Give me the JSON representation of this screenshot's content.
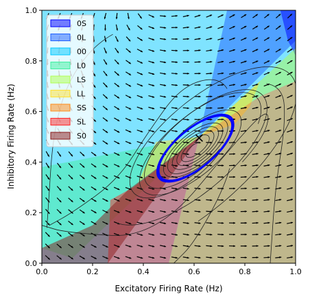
{
  "chart_data": {
    "type": "phase-plane",
    "xlabel": "Excitatory Firing Rate (Hz)",
    "ylabel": "Inhibitory Firing Rate (Hz)",
    "xlim": [
      0,
      1
    ],
    "ylim": [
      0,
      1
    ],
    "x_ticks": [
      "0.0",
      "0.2",
      "0.4",
      "0.6",
      "0.8",
      "1.0"
    ],
    "y_ticks": [
      "0.0",
      "0.2",
      "0.4",
      "0.6",
      "0.8",
      "1.0"
    ],
    "legend_position": "top-left",
    "fixed_point": {
      "x": 0.62,
      "y": 0.495,
      "marker": "x"
    },
    "limit_cycle_color": "#0000ff",
    "legend": [
      {
        "label": "0S",
        "color": "#0000ff"
      },
      {
        "label": "0L",
        "color": "#1f5fff"
      },
      {
        "label": "00",
        "color": "#00c8ff"
      },
      {
        "label": "L0",
        "color": "#40f0a0"
      },
      {
        "label": "LS",
        "color": "#b0ff50"
      },
      {
        "label": "LL",
        "color": "#ffe030"
      },
      {
        "label": "SS",
        "color": "#ff8c1a"
      },
      {
        "label": "SL",
        "color": "#ff2a2a"
      },
      {
        "label": "S0",
        "color": "#8b1a1a"
      }
    ],
    "regions": [
      {
        "label": "00",
        "points": [
          [
            0,
            0
          ],
          [
            0,
            1
          ],
          [
            1,
            1
          ],
          [
            1,
            0
          ]
        ]
      },
      {
        "label": "0L",
        "points": [
          [
            0.73,
            1
          ],
          [
            1,
            1
          ],
          [
            1,
            0.88
          ],
          [
            0.72,
            0.6
          ],
          [
            0.62,
            0.5
          ]
        ]
      },
      {
        "label": "0S",
        "points": [
          [
            0.94,
            1
          ],
          [
            1,
            1
          ],
          [
            1,
            0.82
          ],
          [
            0.97,
            0.88
          ]
        ]
      },
      {
        "label": "L0",
        "points": [
          [
            0,
            0.06
          ],
          [
            0,
            0.38
          ],
          [
            0.62,
            0.5
          ],
          [
            0.12,
            0.02
          ]
        ]
      },
      {
        "label": "LS",
        "points": [
          [
            0.62,
            0.5
          ],
          [
            0.86,
            0.72
          ],
          [
            1,
            0.85
          ],
          [
            1,
            0.72
          ],
          [
            0.86,
            0.66
          ]
        ]
      },
      {
        "label": "LL",
        "points": [
          [
            0.38,
            0.32
          ],
          [
            0.45,
            0.48
          ],
          [
            0.62,
            0.5
          ],
          [
            0.86,
            0.72
          ],
          [
            0.82,
            0.62
          ],
          [
            0.76,
            0.55
          ],
          [
            0.62,
            0.5
          ]
        ]
      },
      {
        "label": "SS",
        "points": [
          [
            0.5,
            0
          ],
          [
            1,
            0
          ],
          [
            1,
            0.72
          ],
          [
            0.86,
            0.66
          ],
          [
            0.62,
            0.5
          ]
        ]
      },
      {
        "label": "SL",
        "points": [
          [
            0.26,
            0
          ],
          [
            0.5,
            0
          ],
          [
            0.62,
            0.5
          ],
          [
            0.36,
            0.3
          ],
          [
            0.27,
            0.25
          ]
        ]
      },
      {
        "label": "S0",
        "points": [
          [
            0,
            0
          ],
          [
            0,
            0.06
          ],
          [
            0.2,
            0.15
          ],
          [
            0.34,
            0.29
          ],
          [
            0.62,
            0.5
          ],
          [
            0.26,
            0
          ]
        ]
      }
    ],
    "limit_cycle": {
      "center": [
        0.605,
        0.455
      ],
      "rx": 0.18,
      "ry": 0.075,
      "rotation_deg": 40
    },
    "vector_field": {
      "grid_x": 22,
      "grid_y": 22
    }
  }
}
